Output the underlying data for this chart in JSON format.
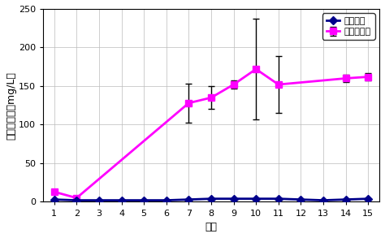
{
  "title": "",
  "xlabel": "日数",
  "ylabel": "硝酸イオン（mg/L）",
  "ylim": [
    0,
    250
  ],
  "yticks": [
    0,
    50,
    100,
    150,
    200,
    250
  ],
  "xlim": [
    0.5,
    15.5
  ],
  "xticks": [
    1,
    2,
    3,
    4,
    5,
    6,
    7,
    8,
    9,
    10,
    11,
    12,
    13,
    14,
    15
  ],
  "series1": {
    "label": "担体のみ",
    "x": [
      1,
      2,
      3,
      4,
      5,
      6,
      7,
      8,
      9,
      10,
      11,
      12,
      13,
      14,
      15
    ],
    "y": [
      3,
      2,
      2,
      2,
      2,
      2,
      3,
      4,
      4,
      4,
      4,
      3,
      2,
      3,
      4
    ],
    "color": "#00008B",
    "marker": "D",
    "markersize": 5,
    "linewidth": 2
  },
  "series2": {
    "label": "微生物担体",
    "x": [
      1,
      2,
      7,
      8,
      9,
      10,
      11,
      14,
      15
    ],
    "y": [
      13,
      5,
      128,
      135,
      152,
      172,
      152,
      160,
      162
    ],
    "yerr": [
      0,
      0,
      25,
      15,
      5,
      65,
      37,
      5,
      5
    ],
    "color": "#FF00FF",
    "marker": "s",
    "markersize": 6,
    "linewidth": 2
  },
  "background_color": "#ffffff",
  "grid_color": "#bbbbbb",
  "legend_fontsize": 8,
  "axis_fontsize": 9,
  "tick_fontsize": 8
}
